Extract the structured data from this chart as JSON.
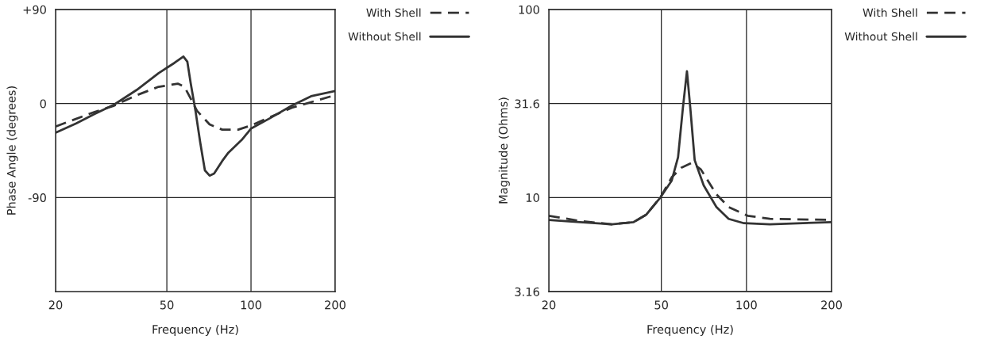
{
  "chart_data": [
    {
      "type": "line",
      "xlabel": "Frequency (Hz)",
      "ylabel": "Phase Angle (degrees)",
      "log": "x",
      "grid": true,
      "legend": "right",
      "xlim": [
        20,
        200
      ],
      "xticks": [
        20,
        50,
        100,
        200
      ],
      "ylim": [
        -180,
        90
      ],
      "yticks": [
        {
          "value": 90,
          "label": "+90"
        },
        0,
        -90
      ],
      "series": [
        {
          "name": "With Shell",
          "color": "#333333",
          "line_style": "dashed",
          "x": [
            20,
            27.6,
            32.4,
            39,
            46.7,
            54.7,
            57.8,
            60.8,
            64.1,
            71.1,
            78.9,
            90,
            100,
            117,
            140,
            200
          ],
          "values": [
            -22,
            -8,
            -2,
            8,
            16,
            19,
            16,
            5,
            -7,
            -20,
            -25,
            -25,
            -21,
            -13,
            -4,
            8
          ]
        },
        {
          "name": "Without Shell",
          "color": "#333333",
          "line_style": "solid",
          "x": [
            20,
            23.7,
            27.6,
            32.4,
            39,
            46.7,
            53.3,
            57.3,
            59.2,
            60.8,
            63.3,
            65.8,
            68.4,
            71.1,
            73.8,
            78.9,
            83,
            92.5,
            100,
            117,
            140,
            164,
            200
          ],
          "values": [
            -28,
            -19,
            -10,
            -1,
            13,
            29,
            39,
            45,
            40,
            20,
            -7,
            -37,
            -64,
            -69,
            -67,
            -55,
            -47,
            -35,
            -24,
            -14,
            -2,
            7,
            12
          ]
        }
      ]
    },
    {
      "type": "line",
      "xlabel": "Frequency (Hz)",
      "ylabel": "Magnitude (Ohms)",
      "log": "xy",
      "grid": true,
      "legend": "right",
      "xlim": [
        20,
        200
      ],
      "xticks": [
        20,
        50,
        100,
        200
      ],
      "ylim": [
        3.16,
        100
      ],
      "yticks": [
        100,
        31.6,
        10,
        3.16
      ],
      "series": [
        {
          "name": "With Shell",
          "color": "#333333",
          "line_style": "dashed",
          "x": [
            20,
            25.8,
            33.4,
            39.9,
            44.2,
            49.6,
            54.4,
            58.8,
            64.2,
            69,
            78.3,
            86.5,
            101,
            121,
            200
          ],
          "values": [
            8.0,
            7.5,
            7.2,
            7.4,
            8.1,
            10,
            12.8,
            14.4,
            15.3,
            14.1,
            10.4,
            8.9,
            8.0,
            7.7,
            7.6
          ]
        },
        {
          "name": "Without Shell",
          "color": "#333333",
          "line_style": "solid",
          "x": [
            20,
            25.8,
            33.4,
            39.9,
            44.2,
            49.6,
            54.4,
            57.3,
            59.6,
            61.6,
            63.3,
            65.6,
            70.6,
            78.3,
            86.5,
            98,
            121,
            200
          ],
          "values": [
            7.6,
            7.4,
            7.2,
            7.4,
            8.1,
            10,
            12.3,
            16.4,
            30,
            47,
            30,
            15.8,
            11.6,
            8.9,
            7.7,
            7.3,
            7.2,
            7.4
          ]
        }
      ]
    }
  ]
}
